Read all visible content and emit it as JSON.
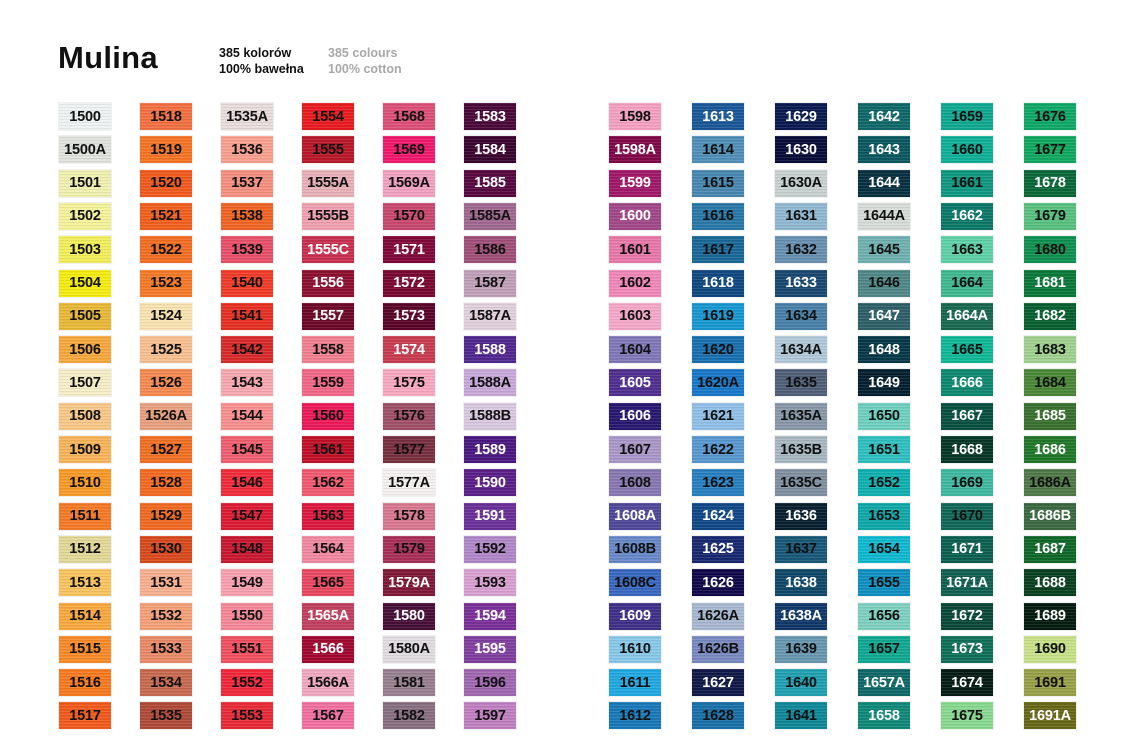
{
  "header": {
    "title": "Mulina",
    "pl_line1": "385 kolorów",
    "pl_line2": "100% bawełna",
    "en_line1": "385 colours",
    "en_line2": "100% cotton"
  },
  "columns": [
    [
      [
        "1500",
        "#eef2f2",
        "#111"
      ],
      [
        "1500A",
        "#e0e2de",
        "#111"
      ],
      [
        "1501",
        "#eef0b0",
        "#111"
      ],
      [
        "1502",
        "#f4f29a",
        "#111"
      ],
      [
        "1503",
        "#f2ee5a",
        "#111"
      ],
      [
        "1504",
        "#f4ec10",
        "#111"
      ],
      [
        "1505",
        "#e8b838",
        "#111"
      ],
      [
        "1506",
        "#f6a83e",
        "#111"
      ],
      [
        "1507",
        "#f6eec8",
        "#111"
      ],
      [
        "1508",
        "#f8c888",
        "#111"
      ],
      [
        "1509",
        "#f8b45a",
        "#111"
      ],
      [
        "1510",
        "#f89a28",
        "#111"
      ],
      [
        "1511",
        "#f47a28",
        "#111"
      ],
      [
        "1512",
        "#e2d898",
        "#111"
      ],
      [
        "1513",
        "#f8c460",
        "#111"
      ],
      [
        "1514",
        "#f8a840",
        "#111"
      ],
      [
        "1515",
        "#f88a2a",
        "#111"
      ],
      [
        "1516",
        "#f67a20",
        "#111"
      ],
      [
        "1517",
        "#f05a1c",
        "#111"
      ]
    ],
    [
      [
        "1518",
        "#f27042",
        "#111"
      ],
      [
        "1519",
        "#f47424",
        "#111"
      ],
      [
        "1520",
        "#f05a1e",
        "#111"
      ],
      [
        "1521",
        "#f0601e",
        "#111"
      ],
      [
        "1522",
        "#f26e22",
        "#111"
      ],
      [
        "1523",
        "#f47a28",
        "#111"
      ],
      [
        "1524",
        "#f8e2b0",
        "#111"
      ],
      [
        "1525",
        "#f8c090",
        "#111"
      ],
      [
        "1526",
        "#f48a50",
        "#111"
      ],
      [
        "1526A",
        "#e8a080",
        "#111"
      ],
      [
        "1527",
        "#f07024",
        "#111"
      ],
      [
        "1528",
        "#f26a22",
        "#111"
      ],
      [
        "1529",
        "#f06a24",
        "#111"
      ],
      [
        "1530",
        "#d84a1e",
        "#111"
      ],
      [
        "1531",
        "#f8b090",
        "#111"
      ],
      [
        "1532",
        "#f4a078",
        "#111"
      ],
      [
        "1533",
        "#e88a68",
        "#111"
      ],
      [
        "1534",
        "#c86a50",
        "#111"
      ],
      [
        "1535",
        "#b04a38",
        "#111"
      ]
    ],
    [
      [
        "1535A",
        "#e8dcdc",
        "#111"
      ],
      [
        "1536",
        "#f8a090",
        "#111"
      ],
      [
        "1537",
        "#f49080",
        "#111"
      ],
      [
        "1538",
        "#f06424",
        "#111"
      ],
      [
        "1539",
        "#e8506a",
        "#111"
      ],
      [
        "1540",
        "#f03c28",
        "#111"
      ],
      [
        "1541",
        "#e83024",
        "#111"
      ],
      [
        "1542",
        "#d82a2a",
        "#111"
      ],
      [
        "1543",
        "#f8a8b0",
        "#111"
      ],
      [
        "1544",
        "#f89090",
        "#111"
      ],
      [
        "1545",
        "#f06070",
        "#111"
      ],
      [
        "1546",
        "#f02c3c",
        "#111"
      ],
      [
        "1547",
        "#dc1c34",
        "#111"
      ],
      [
        "1548",
        "#c81830",
        "#111"
      ],
      [
        "1549",
        "#f8a0b0",
        "#111"
      ],
      [
        "1550",
        "#f48898",
        "#111"
      ],
      [
        "1551",
        "#f05060",
        "#111"
      ],
      [
        "1552",
        "#f0283c",
        "#111"
      ],
      [
        "1553",
        "#e82a38",
        "#111"
      ]
    ],
    [
      [
        "1554",
        "#e81c20",
        "#111"
      ],
      [
        "1555",
        "#b81828",
        "#111"
      ],
      [
        "1555A",
        "#e8b0b8",
        "#111"
      ],
      [
        "1555B",
        "#f0a0b0",
        "#111"
      ],
      [
        "1555C",
        "#c83050",
        "#fff"
      ],
      [
        "1556",
        "#8c1030",
        "#fff"
      ],
      [
        "1557",
        "#6c0828",
        "#fff"
      ],
      [
        "1558",
        "#f08090",
        "#111"
      ],
      [
        "1559",
        "#f06888",
        "#111"
      ],
      [
        "1560",
        "#ec1a58",
        "#111"
      ],
      [
        "1561",
        "#c01028",
        "#111"
      ],
      [
        "1562",
        "#f05a70",
        "#111"
      ],
      [
        "1563",
        "#dc1a40",
        "#111"
      ],
      [
        "1564",
        "#f088a0",
        "#111"
      ],
      [
        "1565",
        "#e84860",
        "#111"
      ],
      [
        "1565A",
        "#c04060",
        "#fff"
      ],
      [
        "1566",
        "#a00830",
        "#fff"
      ],
      [
        "1566A",
        "#f0a8c0",
        "#111"
      ],
      [
        "1567",
        "#f070a0",
        "#111"
      ]
    ],
    [
      [
        "1568",
        "#dc5078",
        "#111"
      ],
      [
        "1569",
        "#f0186c",
        "#111"
      ],
      [
        "1569A",
        "#f0a0c0",
        "#111"
      ],
      [
        "1570",
        "#c84870",
        "#111"
      ],
      [
        "1571",
        "#800838",
        "#fff"
      ],
      [
        "1572",
        "#780830",
        "#fff"
      ],
      [
        "1573",
        "#5a0428",
        "#fff"
      ],
      [
        "1574",
        "#c83c50",
        "#fff"
      ],
      [
        "1575",
        "#f8a8c0",
        "#111"
      ],
      [
        "1576",
        "#a05068",
        "#111"
      ],
      [
        "1577",
        "#783040",
        "#111"
      ],
      [
        "1577A",
        "#f4f0f0",
        "#111"
      ],
      [
        "1578",
        "#d87890",
        "#111"
      ],
      [
        "1579",
        "#a83058",
        "#111"
      ],
      [
        "1579A",
        "#801838",
        "#fff"
      ],
      [
        "1580",
        "#481038",
        "#fff"
      ],
      [
        "1580A",
        "#e0dce0",
        "#111"
      ],
      [
        "1581",
        "#988090",
        "#111"
      ],
      [
        "1582",
        "#887080",
        "#111"
      ]
    ],
    [
      [
        "1583",
        "#4a0838",
        "#fff"
      ],
      [
        "1584",
        "#3a0430",
        "#fff"
      ],
      [
        "1585",
        "#580840",
        "#fff"
      ],
      [
        "1585A",
        "#a06890",
        "#111"
      ],
      [
        "1586",
        "#a05078",
        "#111"
      ],
      [
        "1587",
        "#c0a0b8",
        "#111"
      ],
      [
        "1587A",
        "#e0d0dc",
        "#111"
      ],
      [
        "1588",
        "#502890",
        "#fff"
      ],
      [
        "1588A",
        "#c8a8d8",
        "#111"
      ],
      [
        "1588B",
        "#d8c8e0",
        "#111"
      ],
      [
        "1589",
        "#4a1880",
        "#fff"
      ],
      [
        "1590",
        "#5a2088",
        "#fff"
      ],
      [
        "1591",
        "#6a3098",
        "#fff"
      ],
      [
        "1592",
        "#b088c8",
        "#111"
      ],
      [
        "1593",
        "#d8a0d0",
        "#111"
      ],
      [
        "1594",
        "#7a3098",
        "#fff"
      ],
      [
        "1595",
        "#8040a0",
        "#fff"
      ],
      [
        "1596",
        "#a068b0",
        "#111"
      ],
      [
        "1597",
        "#c080c0",
        "#111"
      ]
    ],
    [
      [
        "1598",
        "#f4a0c0",
        "#111"
      ],
      [
        "1598A",
        "#800848",
        "#fff"
      ],
      [
        "1599",
        "#a01868",
        "#fff"
      ],
      [
        "1600",
        "#a04888",
        "#fff"
      ],
      [
        "1601",
        "#e878a8",
        "#111"
      ],
      [
        "1602",
        "#f088b8",
        "#111"
      ],
      [
        "1603",
        "#f4a8c8",
        "#111"
      ],
      [
        "1604",
        "#8078b8",
        "#111"
      ],
      [
        "1605",
        "#503090",
        "#fff"
      ],
      [
        "1606",
        "#281870",
        "#fff"
      ],
      [
        "1607",
        "#a898c8",
        "#111"
      ],
      [
        "1608",
        "#8878b0",
        "#111"
      ],
      [
        "1608A",
        "#504898",
        "#fff"
      ],
      [
        "1608B",
        "#6888c8",
        "#111"
      ],
      [
        "1608C",
        "#3868c0",
        "#111"
      ],
      [
        "1609",
        "#403088",
        "#fff"
      ],
      [
        "1610",
        "#88c8e8",
        "#111"
      ],
      [
        "1611",
        "#20a8e0",
        "#111"
      ],
      [
        "1612",
        "#1878b8",
        "#111"
      ]
    ],
    [
      [
        "1613",
        "#1a5898",
        "#fff"
      ],
      [
        "1614",
        "#5090b8",
        "#111"
      ],
      [
        "1615",
        "#4888b0",
        "#111"
      ],
      [
        "1616",
        "#2878a8",
        "#111"
      ],
      [
        "1617",
        "#1a6898",
        "#111"
      ],
      [
        "1618",
        "#104880",
        "#fff"
      ],
      [
        "1619",
        "#1898d0",
        "#111"
      ],
      [
        "1620",
        "#1870b0",
        "#111"
      ],
      [
        "1620A",
        "#1878c8",
        "#111"
      ],
      [
        "1621",
        "#90c0e8",
        "#111"
      ],
      [
        "1622",
        "#5898d0",
        "#111"
      ],
      [
        "1623",
        "#2880c0",
        "#111"
      ],
      [
        "1624",
        "#104888",
        "#fff"
      ],
      [
        "1625",
        "#182870",
        "#fff"
      ],
      [
        "1626",
        "#100848",
        "#fff"
      ],
      [
        "1626A",
        "#a8b8d0",
        "#111"
      ],
      [
        "1626B",
        "#7888c0",
        "#111"
      ],
      [
        "1627",
        "#101848",
        "#fff"
      ],
      [
        "1628",
        "#1870a8",
        "#111"
      ]
    ],
    [
      [
        "1629",
        "#0a1a50",
        "#fff"
      ],
      [
        "1630",
        "#080c38",
        "#fff"
      ],
      [
        "1630A",
        "#c8d0d0",
        "#111"
      ],
      [
        "1631",
        "#90b8d0",
        "#111"
      ],
      [
        "1632",
        "#6890b0",
        "#111"
      ],
      [
        "1633",
        "#184870",
        "#fff"
      ],
      [
        "1634",
        "#4880a8",
        "#111"
      ],
      [
        "1634A",
        "#b0c8d8",
        "#111"
      ],
      [
        "1635",
        "#506078",
        "#111"
      ],
      [
        "1635A",
        "#8898a8",
        "#111"
      ],
      [
        "1635B",
        "#a8b8c0",
        "#111"
      ],
      [
        "1635C",
        "#8090a0",
        "#111"
      ],
      [
        "1636",
        "#082030",
        "#fff"
      ],
      [
        "1637",
        "#185878",
        "#111"
      ],
      [
        "1638",
        "#104868",
        "#fff"
      ],
      [
        "1638A",
        "#103868",
        "#fff"
      ],
      [
        "1639",
        "#6898b0",
        "#111"
      ],
      [
        "1640",
        "#20a0b0",
        "#111"
      ],
      [
        "1641",
        "#108898",
        "#111"
      ]
    ],
    [
      [
        "1642",
        "#106868",
        "#fff"
      ],
      [
        "1643",
        "#0c5860",
        "#fff"
      ],
      [
        "1644",
        "#083040",
        "#fff"
      ],
      [
        "1644A",
        "#d8dcd8",
        "#111"
      ],
      [
        "1645",
        "#70b0b0",
        "#111"
      ],
      [
        "1646",
        "#508888",
        "#111"
      ],
      [
        "1647",
        "#306068",
        "#fff"
      ],
      [
        "1648",
        "#083848",
        "#fff"
      ],
      [
        "1649",
        "#042030",
        "#fff"
      ],
      [
        "1650",
        "#70d0c0",
        "#111"
      ],
      [
        "1651",
        "#30c0c0",
        "#111"
      ],
      [
        "1652",
        "#10b0b0",
        "#111"
      ],
      [
        "1653",
        "#10a8a8",
        "#111"
      ],
      [
        "1654",
        "#10b8d0",
        "#111"
      ],
      [
        "1655",
        "#1090c0",
        "#111"
      ],
      [
        "1656",
        "#80d0c0",
        "#111"
      ],
      [
        "1657",
        "#10a890",
        "#111"
      ],
      [
        "1657A",
        "#106868",
        "#fff"
      ],
      [
        "1658",
        "#108878",
        "#fff"
      ]
    ],
    [
      [
        "1659",
        "#10a890",
        "#111"
      ],
      [
        "1660",
        "#10b098",
        "#111"
      ],
      [
        "1661",
        "#109880",
        "#111"
      ],
      [
        "1662",
        "#0c7868",
        "#fff"
      ],
      [
        "1663",
        "#60d0a8",
        "#111"
      ],
      [
        "1664",
        "#40b890",
        "#111"
      ],
      [
        "1664A",
        "#186850",
        "#fff"
      ],
      [
        "1665",
        "#10b898",
        "#111"
      ],
      [
        "1666",
        "#108870",
        "#fff"
      ],
      [
        "1667",
        "#085040",
        "#fff"
      ],
      [
        "1668",
        "#063828",
        "#fff"
      ],
      [
        "1669",
        "#40b8a0",
        "#111"
      ],
      [
        "1670",
        "#106858",
        "#111"
      ],
      [
        "1671",
        "#0c6050",
        "#fff"
      ],
      [
        "1671A",
        "#106050",
        "#fff"
      ],
      [
        "1672",
        "#0a4838",
        "#fff"
      ],
      [
        "1673",
        "#107058",
        "#fff"
      ],
      [
        "1674",
        "#041c14",
        "#fff"
      ],
      [
        "1675",
        "#88d890",
        "#111"
      ]
    ],
    [
      [
        "1676",
        "#10a868",
        "#111"
      ],
      [
        "1677",
        "#10a860",
        "#111"
      ],
      [
        "1678",
        "#0a6838",
        "#fff"
      ],
      [
        "1679",
        "#58c080",
        "#111"
      ],
      [
        "1680",
        "#109050",
        "#111"
      ],
      [
        "1681",
        "#0a7838",
        "#fff"
      ],
      [
        "1682",
        "#086030",
        "#fff"
      ],
      [
        "1683",
        "#a0d090",
        "#111"
      ],
      [
        "1684",
        "#4a8838",
        "#111"
      ],
      [
        "1685",
        "#3a7030",
        "#fff"
      ],
      [
        "1686",
        "#207828",
        "#fff"
      ],
      [
        "1686A",
        "#507848",
        "#111"
      ],
      [
        "1686B",
        "#3a6840",
        "#fff"
      ],
      [
        "1687",
        "#106828",
        "#fff"
      ],
      [
        "1688",
        "#084020",
        "#fff"
      ],
      [
        "1689",
        "#041c10",
        "#fff"
      ],
      [
        "1690",
        "#c8e088",
        "#111"
      ],
      [
        "1691",
        "#98a048",
        "#111"
      ],
      [
        "1691A",
        "#686818",
        "#fff"
      ]
    ]
  ]
}
